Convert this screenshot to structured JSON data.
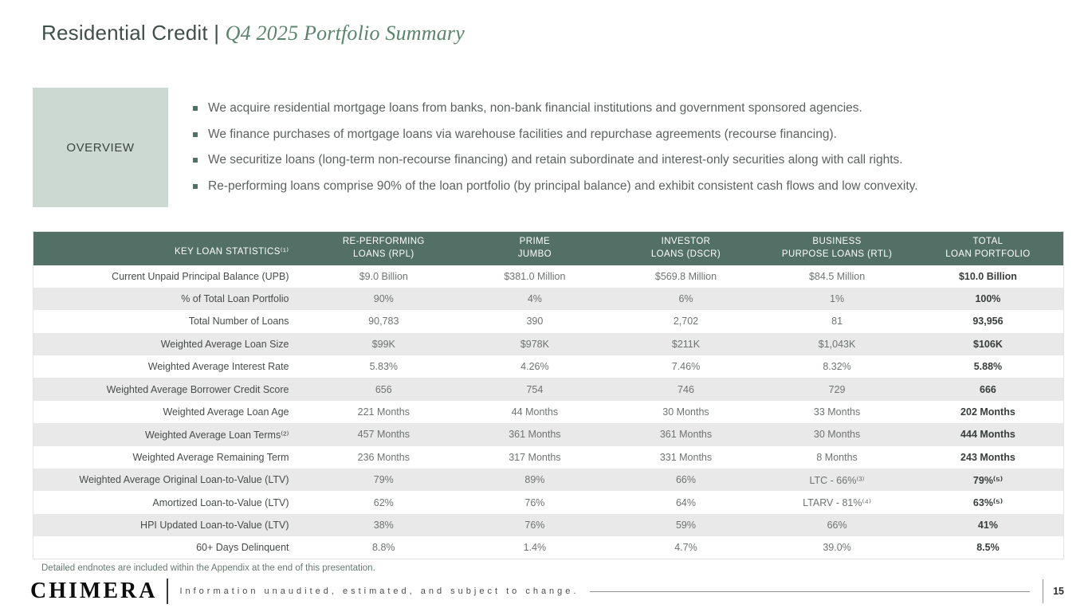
{
  "title": {
    "prefix": "Residential Credit | ",
    "italic": "Q4 2025 Portfolio Summary"
  },
  "overview": {
    "label": "OVERVIEW",
    "bullets": [
      "We acquire residential mortgage loans from banks, non-bank financial institutions and government sponsored agencies.",
      "We finance purchases of mortgage loans via warehouse facilities and repurchase agreements (recourse financing).",
      "We securitize loans (long-term non-recourse financing) and retain subordinate and interest-only securities along with call rights.",
      "Re-performing loans comprise 90% of the loan portfolio (by principal balance) and exhibit consistent cash flows and low convexity."
    ]
  },
  "table": {
    "headers": [
      "KEY LOAN STATISTICS⁽¹⁾",
      "RE-PERFORMING\nLOANS (RPL)",
      "PRIME\nJUMBO",
      "INVESTOR\nLOANS (DSCR)",
      "BUSINESS\nPURPOSE LOANS (RTL)",
      "TOTAL\nLOAN PORTFOLIO"
    ],
    "rows": [
      {
        "label": "Current Unpaid Principal Balance (UPB)",
        "values": [
          "$9.0 Billion",
          "$381.0 Million",
          "$569.8 Million",
          "$84.5 Million",
          "$10.0 Billion"
        ]
      },
      {
        "label": "% of Total Loan Portfolio",
        "values": [
          "90%",
          "4%",
          "6%",
          "1%",
          "100%"
        ]
      },
      {
        "label": "Total Number of Loans",
        "values": [
          "90,783",
          "390",
          "2,702",
          "81",
          "93,956"
        ]
      },
      {
        "label": "Weighted Average Loan Size",
        "values": [
          "$99K",
          "$978K",
          "$211K",
          "$1,043K",
          "$106K"
        ]
      },
      {
        "label": "Weighted Average Interest Rate",
        "values": [
          "5.83%",
          "4.26%",
          "7.46%",
          "8.32%",
          "5.88%"
        ]
      },
      {
        "label": "Weighted Average Borrower Credit Score",
        "values": [
          "656",
          "754",
          "746",
          "729",
          "666"
        ]
      },
      {
        "label": "Weighted Average Loan Age",
        "values": [
          "221 Months",
          "44 Months",
          "30 Months",
          "33 Months",
          "202 Months"
        ]
      },
      {
        "label": "Weighted Average Loan Terms⁽²⁾",
        "values": [
          "457 Months",
          "361 Months",
          "361 Months",
          "30 Months",
          "444 Months"
        ]
      },
      {
        "label": "Weighted Average Remaining Term",
        "values": [
          "236 Months",
          "317 Months",
          "331 Months",
          "8 Months",
          "243 Months"
        ]
      },
      {
        "label": "Weighted Average Original Loan-to-Value (LTV)",
        "values": [
          "79%",
          "89%",
          "66%",
          "LTC - 66%⁽³⁾",
          "79%⁽⁵⁾"
        ]
      },
      {
        "label": "Amortized Loan-to-Value (LTV)",
        "values": [
          "62%",
          "76%",
          "64%",
          "LTARV - 81%⁽⁴⁾",
          "63%⁽⁵⁾"
        ]
      },
      {
        "label": "HPI Updated Loan-to-Value (LTV)",
        "values": [
          "38%",
          "76%",
          "59%",
          "66%",
          "41%"
        ]
      },
      {
        "label": "60+ Days Delinquent",
        "values": [
          "8.8%",
          "1.4%",
          "4.7%",
          "39.0%",
          "8.5%"
        ]
      }
    ]
  },
  "footnote": "Detailed endnotes are included within the Appendix at the end of this presentation.",
  "footer": {
    "logo": "CHIMERA",
    "disclaimer": "Information unaudited, estimated, and subject to change.",
    "page": "15"
  },
  "colors": {
    "header_green": "#527066",
    "overview_box": "#ccd8d2",
    "alt_row_gray": "#e9e9e9",
    "title_accent": "#5b846f"
  }
}
